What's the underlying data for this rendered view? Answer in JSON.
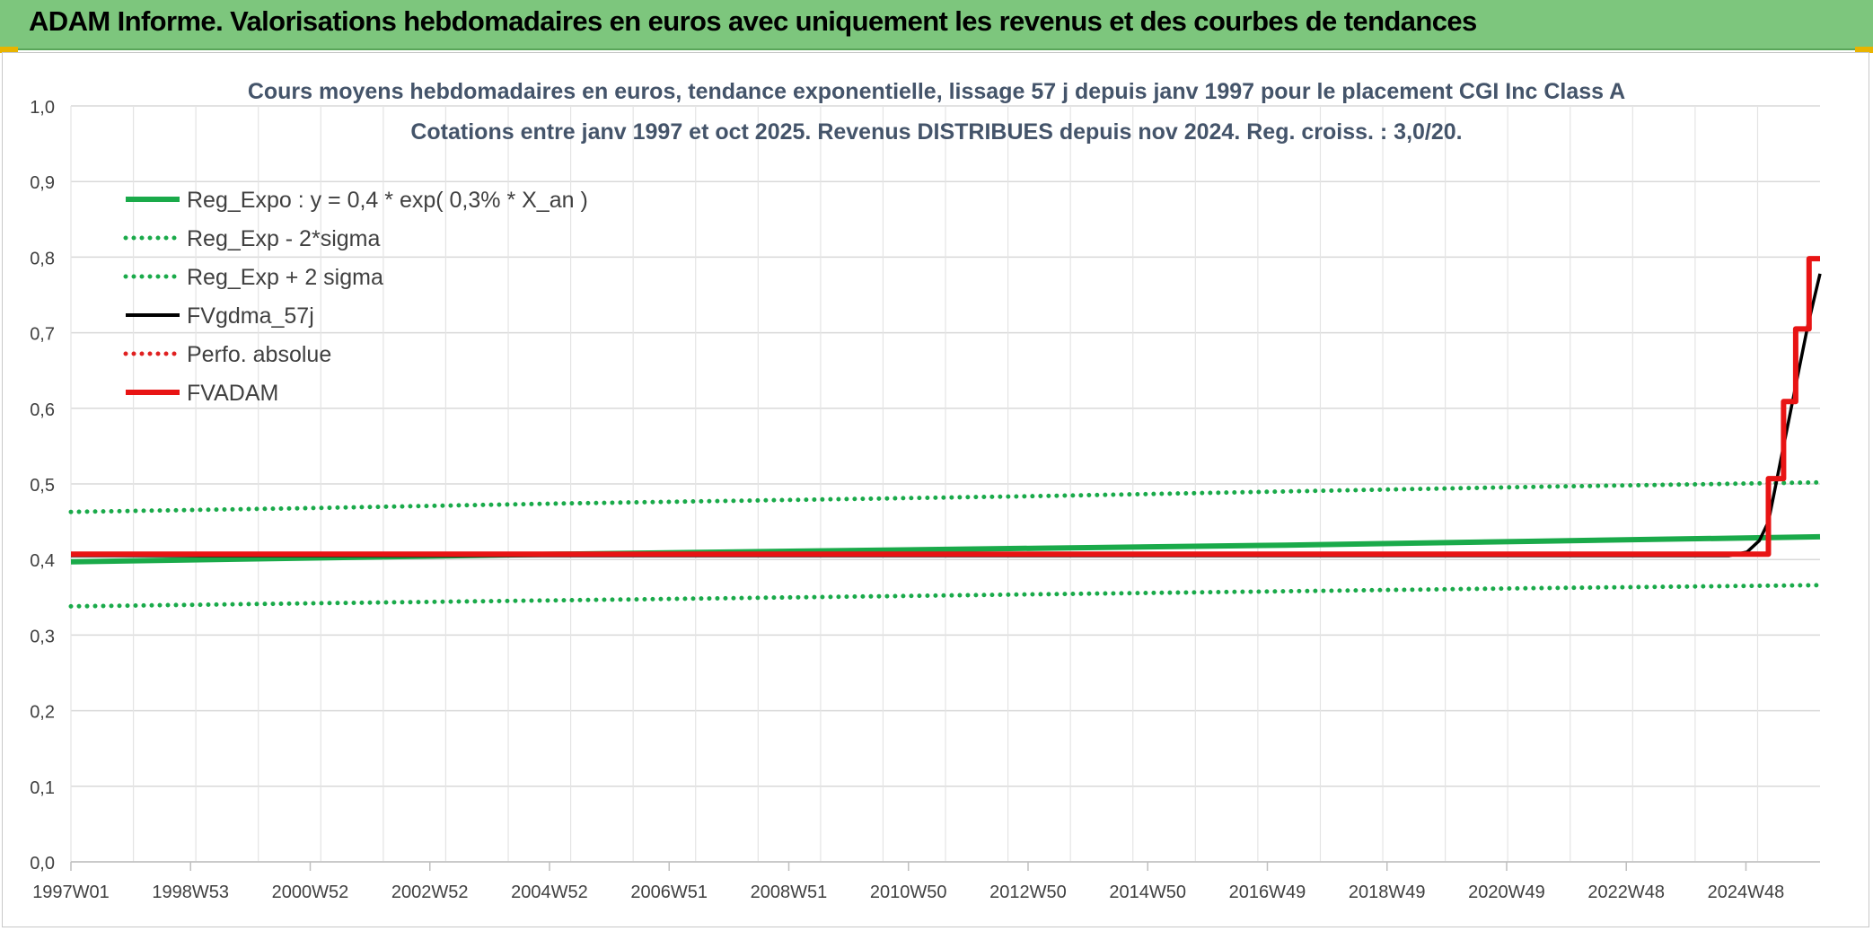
{
  "header": {
    "title": "ADAM Informe. Valorisations hebdomadaires en euros avec uniquement les revenus et des courbes de tendances",
    "background": "#7dc67d"
  },
  "chart_data": {
    "type": "line",
    "title": "Cours moyens hebdomadaires en euros, tendance exponentielle, lissage 57 j depuis janv 1997 pour le placement CGI Inc Class A",
    "subtitle": "Cotations entre janv 1997 et oct 2025. Revenus DISTRIBUES depuis nov 2024. Reg. croiss. : 3,0/20.",
    "xlabel": "",
    "ylabel": "",
    "x_tick_labels": [
      "1997W01",
      "1998W53",
      "2000W52",
      "2002W52",
      "2004W52",
      "2006W51",
      "2008W51",
      "2010W50",
      "2012W50",
      "2014W50",
      "2016W49",
      "2018W49",
      "2020W49",
      "2022W48",
      "2024W48"
    ],
    "y_tick_labels": [
      "0,0",
      "0,1",
      "0,2",
      "0,3",
      "0,4",
      "0,5",
      "0,6",
      "0,7",
      "0,8",
      "0,9",
      "1,0"
    ],
    "ylim": [
      0,
      1.0
    ],
    "xlim": [
      1997.0,
      2025.8
    ],
    "grid": true,
    "legend_position": "top-left",
    "series": [
      {
        "name": "Reg_Expo : y = 0,4 * exp( 0,3% *  X_an )",
        "color": "#1aaa4a",
        "style": "solid-thick",
        "points": [
          [
            1997.0,
            0.397
          ],
          [
            2001.0,
            0.402
          ],
          [
            2005.0,
            0.407
          ],
          [
            2009.0,
            0.411
          ],
          [
            2013.0,
            0.415
          ],
          [
            2017.0,
            0.419
          ],
          [
            2021.0,
            0.424
          ],
          [
            2025.8,
            0.43
          ]
        ]
      },
      {
        "name": "Reg_Exp - 2*sigma",
        "color": "#1aaa4a",
        "style": "dotted",
        "points": [
          [
            1997.0,
            0.338
          ],
          [
            2001.0,
            0.342
          ],
          [
            2005.0,
            0.346
          ],
          [
            2009.0,
            0.35
          ],
          [
            2013.0,
            0.354
          ],
          [
            2017.0,
            0.358
          ],
          [
            2021.0,
            0.362
          ],
          [
            2025.8,
            0.366
          ]
        ]
      },
      {
        "name": "Reg_Exp + 2 sigma",
        "color": "#1aaa4a",
        "style": "dotted",
        "points": [
          [
            1997.0,
            0.463
          ],
          [
            2001.0,
            0.468
          ],
          [
            2005.0,
            0.474
          ],
          [
            2009.0,
            0.479
          ],
          [
            2013.0,
            0.484
          ],
          [
            2017.0,
            0.49
          ],
          [
            2021.0,
            0.496
          ],
          [
            2025.8,
            0.502
          ]
        ]
      },
      {
        "name": "FVgdma_57j",
        "color": "#000000",
        "style": "solid",
        "points": [
          [
            1997.0,
            0.405
          ],
          [
            2024.3,
            0.405
          ],
          [
            2024.6,
            0.41
          ],
          [
            2024.8,
            0.425
          ],
          [
            2024.95,
            0.45
          ],
          [
            2025.05,
            0.49
          ],
          [
            2025.15,
            0.53
          ],
          [
            2025.3,
            0.59
          ],
          [
            2025.45,
            0.65
          ],
          [
            2025.6,
            0.71
          ],
          [
            2025.8,
            0.778
          ]
        ]
      },
      {
        "name": "Perfo. absolue",
        "color": "#e02020",
        "style": "dotted",
        "points": []
      },
      {
        "name": "FVADAM",
        "color": "#e81414",
        "style": "solid-thick-step",
        "points": [
          [
            1997.0,
            0.407
          ],
          [
            2024.95,
            0.407
          ],
          [
            2024.95,
            0.507
          ],
          [
            2025.2,
            0.507
          ],
          [
            2025.2,
            0.609
          ],
          [
            2025.4,
            0.609
          ],
          [
            2025.4,
            0.705
          ],
          [
            2025.62,
            0.705
          ],
          [
            2025.62,
            0.798
          ],
          [
            2025.8,
            0.798
          ]
        ]
      }
    ]
  }
}
